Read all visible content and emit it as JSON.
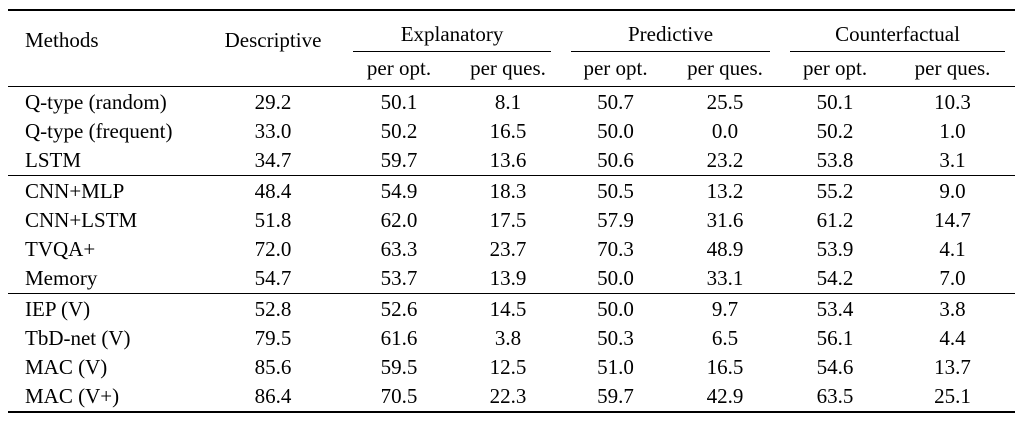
{
  "page": {
    "background_color": "#ffffff",
    "text_color": "#000000",
    "rule_color": "#000000"
  },
  "table": {
    "header": {
      "methods": "Methods",
      "descriptive": "Descriptive",
      "groups": [
        {
          "label": "Explanatory"
        },
        {
          "label": "Predictive"
        },
        {
          "label": "Counterfactual"
        }
      ],
      "per_opt": "per opt.",
      "per_ques": "per ques."
    },
    "groups": [
      {
        "rows": [
          {
            "method": "Q-type (random)",
            "values": [
              "29.2",
              "50.1",
              "8.1",
              "50.7",
              "25.5",
              "50.1",
              "10.3"
            ]
          },
          {
            "method": "Q-type (frequent)",
            "values": [
              "33.0",
              "50.2",
              "16.5",
              "50.0",
              "0.0",
              "50.2",
              "1.0"
            ]
          },
          {
            "method": "LSTM",
            "values": [
              "34.7",
              "59.7",
              "13.6",
              "50.6",
              "23.2",
              "53.8",
              "3.1"
            ]
          }
        ]
      },
      {
        "rows": [
          {
            "method": "CNN+MLP",
            "values": [
              "48.4",
              "54.9",
              "18.3",
              "50.5",
              "13.2",
              "55.2",
              "9.0"
            ]
          },
          {
            "method": "CNN+LSTM",
            "values": [
              "51.8",
              "62.0",
              "17.5",
              "57.9",
              "31.6",
              "61.2",
              "14.7"
            ]
          },
          {
            "method": "TVQA+",
            "values": [
              "72.0",
              "63.3",
              "23.7",
              "70.3",
              "48.9",
              "53.9",
              "4.1"
            ]
          },
          {
            "method": "Memory",
            "values": [
              "54.7",
              "53.7",
              "13.9",
              "50.0",
              "33.1",
              "54.2",
              "7.0"
            ]
          }
        ]
      },
      {
        "rows": [
          {
            "method": "IEP (V)",
            "values": [
              "52.8",
              "52.6",
              "14.5",
              "50.0",
              "9.7",
              "53.4",
              "3.8"
            ]
          },
          {
            "method": "TbD-net (V)",
            "values": [
              "79.5",
              "61.6",
              "3.8",
              "50.3",
              "6.5",
              "56.1",
              "4.4"
            ]
          },
          {
            "method": "MAC (V)",
            "values": [
              "85.6",
              "59.5",
              "12.5",
              "51.0",
              "16.5",
              "54.6",
              "13.7"
            ]
          },
          {
            "method": "MAC (V+)",
            "values": [
              "86.4",
              "70.5",
              "22.3",
              "59.7",
              "42.9",
              "63.5",
              "25.1"
            ]
          }
        ]
      }
    ]
  }
}
